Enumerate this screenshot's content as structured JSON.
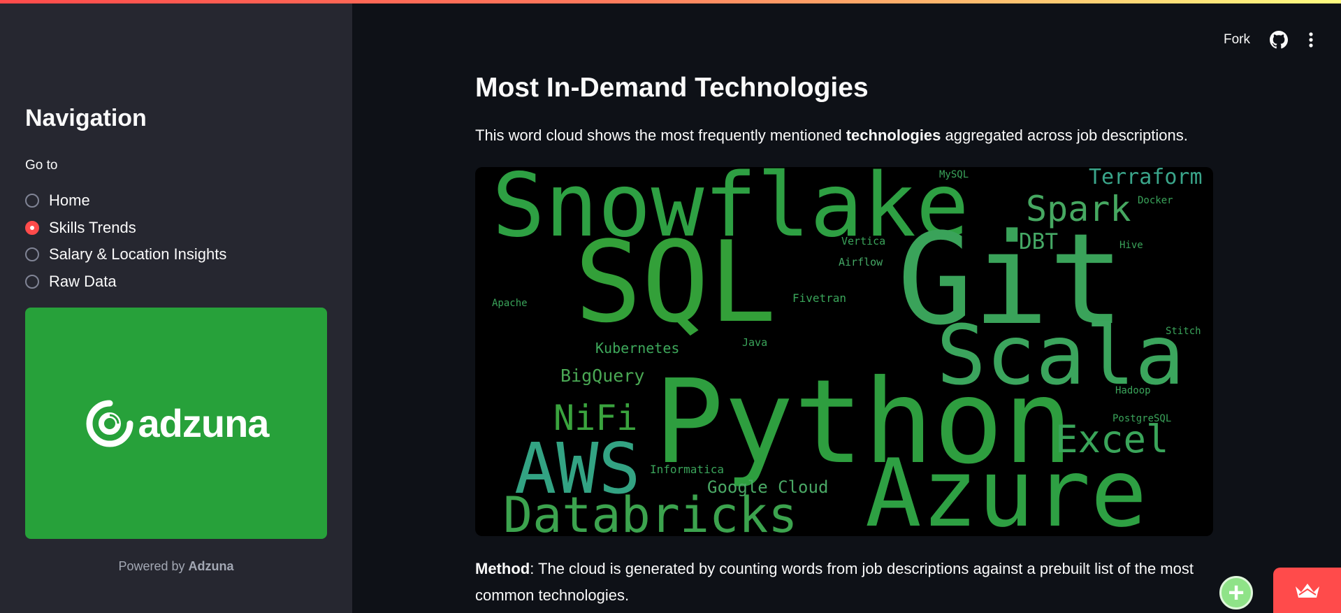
{
  "header": {
    "fork_label": "Fork"
  },
  "sidebar": {
    "title": "Navigation",
    "goto_label": "Go to",
    "options": [
      {
        "label": "Home",
        "selected": false
      },
      {
        "label": "Skills Trends",
        "selected": true
      },
      {
        "label": "Salary & Location Insights",
        "selected": false
      },
      {
        "label": "Raw Data",
        "selected": false
      }
    ],
    "logo_text": "adzuna",
    "powered_prefix": "Powered by ",
    "powered_brand": "Adzuna"
  },
  "main": {
    "title": "Most In-Demand Technologies",
    "intro_before": "This word cloud shows the most frequently mentioned ",
    "intro_bold": "technologies",
    "intro_after": " aggregated across job descriptions.",
    "method_label": "Method",
    "method_text": ": The cloud is generated by counting words from job descriptions against a prebuilt list of the most common technologies."
  },
  "wordcloud": {
    "words": [
      {
        "text": "Snowflake",
        "color": "#2ea043"
      },
      {
        "text": "SQL",
        "color": "#33a039"
      },
      {
        "text": "Git",
        "color": "#3aa35a"
      },
      {
        "text": "Python",
        "color": "#2e9e3f"
      },
      {
        "text": "Azure",
        "color": "#2ea043"
      },
      {
        "text": "Scala",
        "color": "#3ba55d"
      },
      {
        "text": "AWS",
        "color": "#33a383"
      },
      {
        "text": "Databricks",
        "color": "#3ca34e"
      },
      {
        "text": "Spark",
        "color": "#46a861"
      },
      {
        "text": "Terraform",
        "color": "#3aa58a"
      },
      {
        "text": "Excel",
        "color": "#3aa55a"
      },
      {
        "text": "NiFi",
        "color": "#3aa33e"
      },
      {
        "text": "DBT",
        "color": "#45a865"
      },
      {
        "text": "BigQuery",
        "color": "#4aa854"
      },
      {
        "text": "Kubernetes",
        "color": "#3ea85b"
      },
      {
        "text": "Google Cloud",
        "color": "#4aa865"
      },
      {
        "text": "Informatica",
        "color": "#3aa35a"
      },
      {
        "text": "Fivetran",
        "color": "#3aa55a"
      },
      {
        "text": "Airflow",
        "color": "#45a865"
      },
      {
        "text": "Vertica",
        "color": "#3aa35a"
      },
      {
        "text": "Java",
        "color": "#3aa35a"
      },
      {
        "text": "Apache",
        "color": "#3aa35a"
      },
      {
        "text": "Hive",
        "color": "#3aa35a"
      },
      {
        "text": "Docker",
        "color": "#3aa35a"
      },
      {
        "text": "MySQL",
        "color": "#3aa35a"
      },
      {
        "text": "Stitch",
        "color": "#3aa35a"
      },
      {
        "text": "Hadoop",
        "color": "#3aa35a"
      },
      {
        "text": "PostgreSQL",
        "color": "#3aa35a"
      }
    ]
  }
}
